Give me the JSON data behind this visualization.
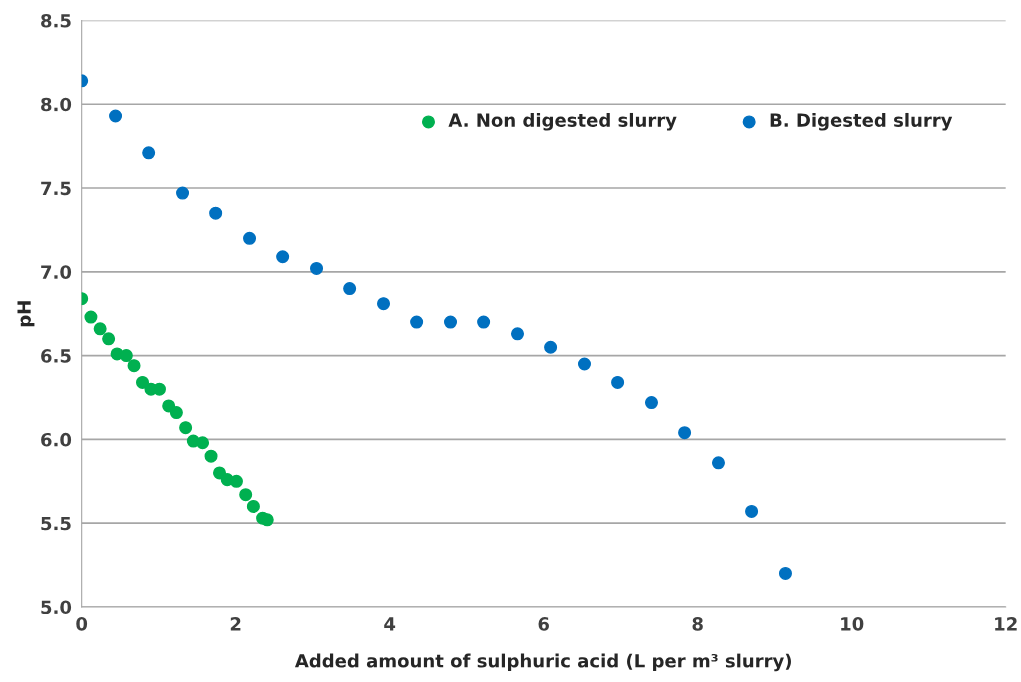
{
  "chart_data": {
    "type": "scatter",
    "xlabel": "Added amount of sulphuric acid (L per m³ slurry)",
    "ylabel": "pH",
    "xlim": [
      0,
      12
    ],
    "xticks": [
      0,
      2,
      4,
      6,
      8,
      10,
      12
    ],
    "ylim": [
      5,
      8.5
    ],
    "yticks": [
      {
        "value": 5,
        "label": "5.0"
      },
      {
        "value": 5.5,
        "label": "5.5"
      },
      {
        "value": 6,
        "label": "6.0"
      },
      {
        "value": 6.5,
        "label": "6.5"
      },
      {
        "value": 7,
        "label": "7.0"
      },
      {
        "value": 7.5,
        "label": "7.5"
      },
      {
        "value": 8,
        "label": "8.0"
      },
      {
        "value": 8.5,
        "label": "8.5"
      }
    ],
    "grid": "y",
    "legend": "top right",
    "marker": "circle",
    "series": [
      {
        "name": "A. Non digested slurry",
        "color": "#00b050",
        "x": [
          0,
          0.12,
          0.24,
          0.35,
          0.46,
          0.58,
          0.68,
          0.79,
          0.9,
          1.01,
          1.13,
          1.23,
          1.35,
          1.45,
          1.57,
          1.68,
          1.79,
          1.89,
          2.01,
          2.13,
          2.23,
          2.35,
          2.41
        ],
        "values": [
          6.84,
          6.73,
          6.66,
          6.6,
          6.51,
          6.5,
          6.44,
          6.34,
          6.3,
          6.3,
          6.2,
          6.16,
          6.07,
          5.99,
          5.98,
          5.9,
          5.8,
          5.76,
          5.75,
          5.67,
          5.6,
          5.53,
          5.52
        ]
      },
      {
        "name": "B. Digested slurry",
        "color": "#0070c0",
        "x": [
          0,
          0.44,
          0.87,
          1.31,
          1.74,
          2.18,
          2.61,
          3.05,
          3.48,
          3.92,
          4.35,
          4.79,
          5.22,
          5.66,
          6.09,
          6.53,
          6.96,
          7.4,
          7.83,
          8.27,
          8.7,
          9.14
        ],
        "values": [
          8.14,
          7.93,
          7.71,
          7.47,
          7.35,
          7.2,
          7.09,
          7.02,
          6.9,
          6.81,
          6.7,
          6.7,
          6.7,
          6.63,
          6.55,
          6.45,
          6.34,
          6.22,
          6.04,
          5.86,
          5.57,
          5.2
        ]
      }
    ]
  }
}
